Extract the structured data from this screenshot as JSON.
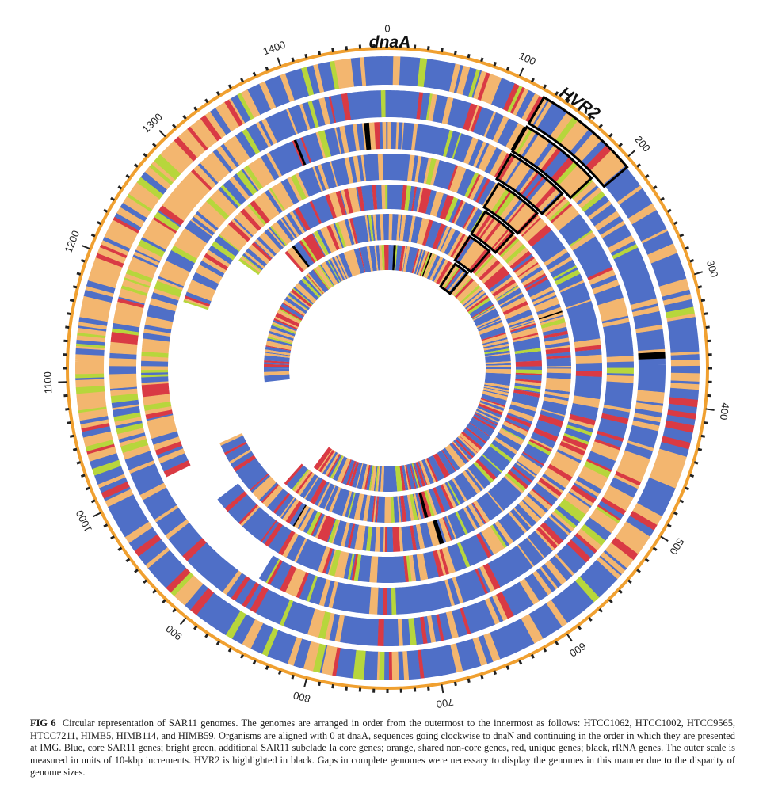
{
  "figure": {
    "scale": {
      "unit_kbp": 10,
      "max": 1480,
      "major_step": 100,
      "labels": [
        "0",
        "100",
        "200",
        "300",
        "400",
        "500",
        "600",
        "700",
        "800",
        "900",
        "1000",
        "1100",
        "1200",
        "1300",
        "1400"
      ]
    },
    "labels": {
      "origin": "dnaA",
      "highlight": "HVR2"
    },
    "colors": {
      "core": "#4f6fc7",
      "subclade_core": "#b7d63c",
      "shared_noncore": "#f3b66f",
      "unique": "#d93a44",
      "rrna": "#000000",
      "scale_orange": "#f0a030",
      "scale_black": "#222222"
    },
    "genomes": [
      {
        "name": "HTCC1062",
        "gap_start_deg": null,
        "gap_end_deg": null
      },
      {
        "name": "HTCC1002",
        "gap_start_deg": null,
        "gap_end_deg": null
      },
      {
        "name": "HTCC9565",
        "gap_start_deg": 212,
        "gap_end_deg": 244
      },
      {
        "name": "HTCC7211",
        "gap_start_deg": 232,
        "gap_end_deg": 288
      },
      {
        "name": "HIMB5",
        "gap_start_deg": 246,
        "gap_end_deg": 306
      },
      {
        "name": "HIMB114",
        "gap_start_deg": 222,
        "gap_end_deg": 318
      },
      {
        "name": "HIMB59",
        "gap_start_deg": 216,
        "gap_end_deg": 264
      }
    ]
  },
  "caption": {
    "label": "FIG 6",
    "text": "Circular representation of SAR11 genomes. The genomes are arranged in order from the outermost to the innermost as follows: HTCC1062, HTCC1002, HTCC9565, HTCC7211, HIMB5, HIMB114, and HIMB59. Organisms are aligned with 0 at dnaA, sequences going clockwise to dnaN and continuing in the order in which they are presented at IMG. Blue, core SAR11 genes; bright green, additional SAR11 subclade Ia core genes; orange, shared non-core genes, red, unique genes; black, rRNA genes. The outer scale is measured in units of 10-kbp increments. HVR2 is highlighted in black. Gaps in complete genomes were necessary to display the genomes in this manner due to the disparity of genome sizes."
  }
}
